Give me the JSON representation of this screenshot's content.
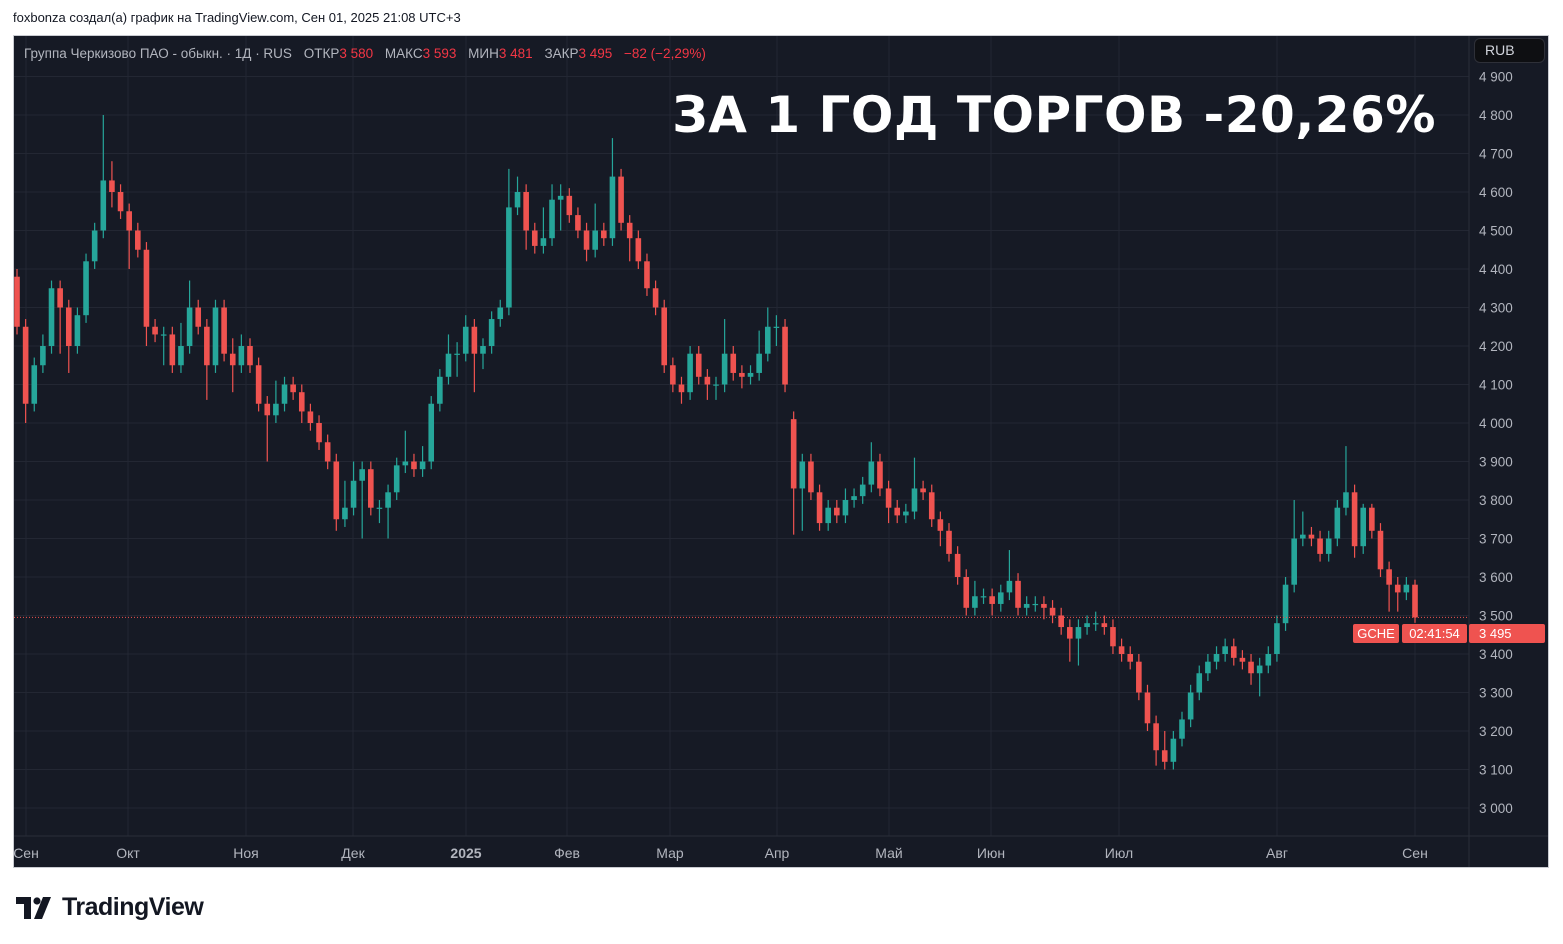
{
  "attribution": "foxbonza создал(а) график на TradingView.com, Сен 01, 2025 21:08 UTC+3",
  "legend": {
    "symbol": "Группа Черкизово ПАО - обыкн. · 1Д · RUS",
    "open_label": "ОТКР",
    "open": "3 580",
    "high_label": "МАКС",
    "high": "3 593",
    "low_label": "МИН",
    "low": "3 481",
    "close_label": "ЗАКР",
    "close": "3 495",
    "change": "−82 (−2,29%)"
  },
  "overlay_title": "ЗА 1 ГОД ТОРГОВ -20,26%",
  "currency_button": "RUB",
  "last_price": {
    "symbol": "GCHE",
    "price": "3 495",
    "countdown": "02:41:54",
    "value": 3495
  },
  "logo": "TradingView",
  "colors": {
    "background": "#161a25",
    "up": "#26a69a",
    "down": "#ef5350",
    "grid": "#232733",
    "axis_text": "#b2b5be"
  },
  "chart_data": {
    "type": "candlestick",
    "interval": "1D",
    "ylim": [
      2950,
      4920
    ],
    "grid": true,
    "y_ticks": [
      "4 900",
      "4 800",
      "4 700",
      "4 600",
      "4 500",
      "4 400",
      "4 300",
      "4 200",
      "4 100",
      "4 000",
      "3 900",
      "3 800",
      "3 700",
      "3 600",
      "3 500",
      "3 400",
      "3 300",
      "3 200",
      "3 100",
      "3 000"
    ],
    "y_tick_values": [
      4900,
      4800,
      4700,
      4600,
      4500,
      4400,
      4300,
      4200,
      4100,
      4000,
      3900,
      3800,
      3700,
      3600,
      3500,
      3400,
      3300,
      3200,
      3100,
      3000
    ],
    "x_ticks": [
      {
        "label": "Сен",
        "date": "2024-09"
      },
      {
        "label": "Окт",
        "date": "2024-10"
      },
      {
        "label": "Ноя",
        "date": "2024-11"
      },
      {
        "label": "Дек",
        "date": "2024-12"
      },
      {
        "label": "2025",
        "date": "2025-01",
        "bold": true
      },
      {
        "label": "Фев",
        "date": "2025-02"
      },
      {
        "label": "Мар",
        "date": "2025-03"
      },
      {
        "label": "Апр",
        "date": "2025-04"
      },
      {
        "label": "Май",
        "date": "2025-05"
      },
      {
        "label": "Июн",
        "date": "2025-06"
      },
      {
        "label": "Июл",
        "date": "2025-07"
      },
      {
        "label": "Авг",
        "date": "2025-08"
      },
      {
        "label": "Сен",
        "date": "2025-09"
      }
    ],
    "candles_ohlc": [
      [
        4380,
        4400,
        4230,
        4250
      ],
      [
        4250,
        4270,
        4000,
        4050
      ],
      [
        4050,
        4170,
        4030,
        4150
      ],
      [
        4150,
        4230,
        4130,
        4200
      ],
      [
        4200,
        4370,
        4180,
        4350
      ],
      [
        4350,
        4370,
        4180,
        4300
      ],
      [
        4300,
        4320,
        4130,
        4200
      ],
      [
        4200,
        4300,
        4180,
        4280
      ],
      [
        4280,
        4440,
        4260,
        4420
      ],
      [
        4420,
        4520,
        4400,
        4500
      ],
      [
        4500,
        4800,
        4480,
        4630
      ],
      [
        4630,
        4680,
        4560,
        4600
      ],
      [
        4600,
        4620,
        4530,
        4550
      ],
      [
        4550,
        4570,
        4400,
        4500
      ],
      [
        4500,
        4520,
        4430,
        4450
      ],
      [
        4450,
        4470,
        4200,
        4250
      ],
      [
        4250,
        4270,
        4210,
        4230
      ],
      [
        4230,
        4250,
        4150,
        4230
      ],
      [
        4230,
        4250,
        4130,
        4150
      ],
      [
        4150,
        4260,
        4130,
        4200
      ],
      [
        4200,
        4370,
        4180,
        4300
      ],
      [
        4300,
        4320,
        4230,
        4250
      ],
      [
        4250,
        4270,
        4060,
        4150
      ],
      [
        4150,
        4320,
        4130,
        4300
      ],
      [
        4300,
        4320,
        4160,
        4180
      ],
      [
        4180,
        4220,
        4080,
        4150
      ],
      [
        4150,
        4230,
        4130,
        4200
      ],
      [
        4200,
        4220,
        4130,
        4150
      ],
      [
        4150,
        4170,
        4030,
        4050
      ],
      [
        4050,
        4070,
        3900,
        4020
      ],
      [
        4020,
        4110,
        4000,
        4050
      ],
      [
        4050,
        4120,
        4030,
        4100
      ],
      [
        4100,
        4120,
        4060,
        4080
      ],
      [
        4080,
        4100,
        4000,
        4030
      ],
      [
        4030,
        4050,
        3980,
        4000
      ],
      [
        4000,
        4020,
        3930,
        3950
      ],
      [
        3950,
        3970,
        3880,
        3900
      ],
      [
        3900,
        3920,
        3720,
        3750
      ],
      [
        3750,
        3850,
        3730,
        3780
      ],
      [
        3780,
        3900,
        3760,
        3850
      ],
      [
        3850,
        3900,
        3700,
        3880
      ],
      [
        3880,
        3900,
        3760,
        3780
      ],
      [
        3780,
        3800,
        3740,
        3780
      ],
      [
        3780,
        3840,
        3700,
        3820
      ],
      [
        3820,
        3910,
        3800,
        3890
      ],
      [
        3890,
        3980,
        3870,
        3900
      ],
      [
        3900,
        3920,
        3860,
        3880
      ],
      [
        3880,
        3940,
        3860,
        3900
      ],
      [
        3900,
        4070,
        3880,
        4050
      ],
      [
        4050,
        4140,
        4030,
        4120
      ],
      [
        4120,
        4230,
        4100,
        4180
      ],
      [
        4180,
        4210,
        4120,
        4180
      ],
      [
        4180,
        4280,
        4160,
        4250
      ],
      [
        4250,
        4270,
        4080,
        4180
      ],
      [
        4180,
        4220,
        4140,
        4200
      ],
      [
        4200,
        4290,
        4180,
        4270
      ],
      [
        4270,
        4320,
        4250,
        4300
      ],
      [
        4300,
        4660,
        4280,
        4560
      ],
      [
        4560,
        4640,
        4540,
        4600
      ],
      [
        4600,
        4620,
        4450,
        4500
      ],
      [
        4500,
        4520,
        4440,
        4460
      ],
      [
        4460,
        4560,
        4440,
        4480
      ],
      [
        4480,
        4620,
        4460,
        4580
      ],
      [
        4580,
        4620,
        4500,
        4590
      ],
      [
        4590,
        4610,
        4520,
        4540
      ],
      [
        4540,
        4560,
        4480,
        4500
      ],
      [
        4500,
        4520,
        4420,
        4450
      ],
      [
        4450,
        4570,
        4430,
        4500
      ],
      [
        4500,
        4520,
        4460,
        4480
      ],
      [
        4480,
        4740,
        4460,
        4640
      ],
      [
        4640,
        4660,
        4500,
        4520
      ],
      [
        4520,
        4540,
        4420,
        4480
      ],
      [
        4480,
        4500,
        4400,
        4420
      ],
      [
        4420,
        4440,
        4330,
        4350
      ],
      [
        4350,
        4370,
        4280,
        4300
      ],
      [
        4300,
        4320,
        4130,
        4150
      ],
      [
        4150,
        4170,
        4080,
        4100
      ],
      [
        4100,
        4120,
        4050,
        4080
      ],
      [
        4080,
        4200,
        4060,
        4180
      ],
      [
        4180,
        4200,
        4100,
        4120
      ],
      [
        4120,
        4140,
        4060,
        4100
      ],
      [
        4100,
        4120,
        4060,
        4100
      ],
      [
        4100,
        4270,
        4080,
        4180
      ],
      [
        4180,
        4200,
        4110,
        4130
      ],
      [
        4130,
        4150,
        4090,
        4120
      ],
      [
        4120,
        4150,
        4100,
        4130
      ],
      [
        4130,
        4240,
        4110,
        4180
      ],
      [
        4180,
        4300,
        4160,
        4250
      ],
      [
        4250,
        4280,
        4200,
        4250
      ],
      [
        4250,
        4270,
        4080,
        4100
      ],
      [
        4010,
        4030,
        3710,
        3830
      ],
      [
        3830,
        3920,
        3720,
        3900
      ],
      [
        3900,
        3920,
        3800,
        3820
      ],
      [
        3820,
        3840,
        3720,
        3740
      ],
      [
        3740,
        3800,
        3720,
        3780
      ],
      [
        3780,
        3800,
        3740,
        3760
      ],
      [
        3760,
        3830,
        3740,
        3800
      ],
      [
        3800,
        3830,
        3780,
        3810
      ],
      [
        3810,
        3860,
        3790,
        3840
      ],
      [
        3840,
        3950,
        3820,
        3900
      ],
      [
        3900,
        3920,
        3810,
        3830
      ],
      [
        3830,
        3850,
        3740,
        3780
      ],
      [
        3780,
        3800,
        3740,
        3760
      ],
      [
        3760,
        3790,
        3740,
        3770
      ],
      [
        3770,
        3910,
        3750,
        3830
      ],
      [
        3830,
        3850,
        3800,
        3820
      ],
      [
        3820,
        3840,
        3730,
        3750
      ],
      [
        3750,
        3770,
        3680,
        3720
      ],
      [
        3720,
        3740,
        3640,
        3660
      ],
      [
        3660,
        3680,
        3580,
        3600
      ],
      [
        3600,
        3620,
        3500,
        3520
      ],
      [
        3520,
        3590,
        3500,
        3550
      ],
      [
        3550,
        3570,
        3530,
        3550
      ],
      [
        3550,
        3570,
        3500,
        3530
      ],
      [
        3530,
        3580,
        3510,
        3560
      ],
      [
        3560,
        3670,
        3540,
        3590
      ],
      [
        3590,
        3610,
        3500,
        3520
      ],
      [
        3520,
        3550,
        3500,
        3530
      ],
      [
        3530,
        3550,
        3510,
        3530
      ],
      [
        3530,
        3550,
        3490,
        3520
      ],
      [
        3520,
        3540,
        3480,
        3500
      ],
      [
        3500,
        3520,
        3450,
        3470
      ],
      [
        3470,
        3490,
        3380,
        3440
      ],
      [
        3440,
        3490,
        3370,
        3470
      ],
      [
        3470,
        3500,
        3450,
        3480
      ],
      [
        3480,
        3510,
        3460,
        3480
      ],
      [
        3480,
        3500,
        3450,
        3470
      ],
      [
        3470,
        3490,
        3400,
        3420
      ],
      [
        3420,
        3440,
        3380,
        3400
      ],
      [
        3400,
        3420,
        3360,
        3380
      ],
      [
        3380,
        3400,
        3280,
        3300
      ],
      [
        3300,
        3320,
        3200,
        3220
      ],
      [
        3220,
        3240,
        3110,
        3150
      ],
      [
        3150,
        3200,
        3100,
        3120
      ],
      [
        3120,
        3200,
        3100,
        3180
      ],
      [
        3180,
        3250,
        3160,
        3230
      ],
      [
        3230,
        3320,
        3210,
        3300
      ],
      [
        3300,
        3370,
        3280,
        3350
      ],
      [
        3350,
        3400,
        3330,
        3380
      ],
      [
        3380,
        3420,
        3360,
        3400
      ],
      [
        3400,
        3440,
        3380,
        3420
      ],
      [
        3420,
        3440,
        3370,
        3390
      ],
      [
        3390,
        3410,
        3360,
        3380
      ],
      [
        3380,
        3400,
        3320,
        3350
      ],
      [
        3350,
        3390,
        3290,
        3370
      ],
      [
        3370,
        3420,
        3350,
        3400
      ],
      [
        3400,
        3500,
        3380,
        3480
      ],
      [
        3480,
        3600,
        3460,
        3580
      ],
      [
        3580,
        3800,
        3560,
        3700
      ],
      [
        3700,
        3770,
        3680,
        3710
      ],
      [
        3710,
        3730,
        3680,
        3700
      ],
      [
        3700,
        3720,
        3640,
        3660
      ],
      [
        3660,
        3720,
        3640,
        3700
      ],
      [
        3700,
        3800,
        3680,
        3780
      ],
      [
        3780,
        3940,
        3760,
        3820
      ],
      [
        3820,
        3840,
        3650,
        3680
      ],
      [
        3680,
        3790,
        3660,
        3780
      ],
      [
        3780,
        3790,
        3700,
        3720
      ],
      [
        3720,
        3740,
        3600,
        3620
      ],
      [
        3620,
        3640,
        3510,
        3580
      ],
      [
        3580,
        3600,
        3510,
        3560
      ],
      [
        3560,
        3600,
        3540,
        3580
      ],
      [
        3580,
        3593,
        3481,
        3495
      ]
    ]
  }
}
